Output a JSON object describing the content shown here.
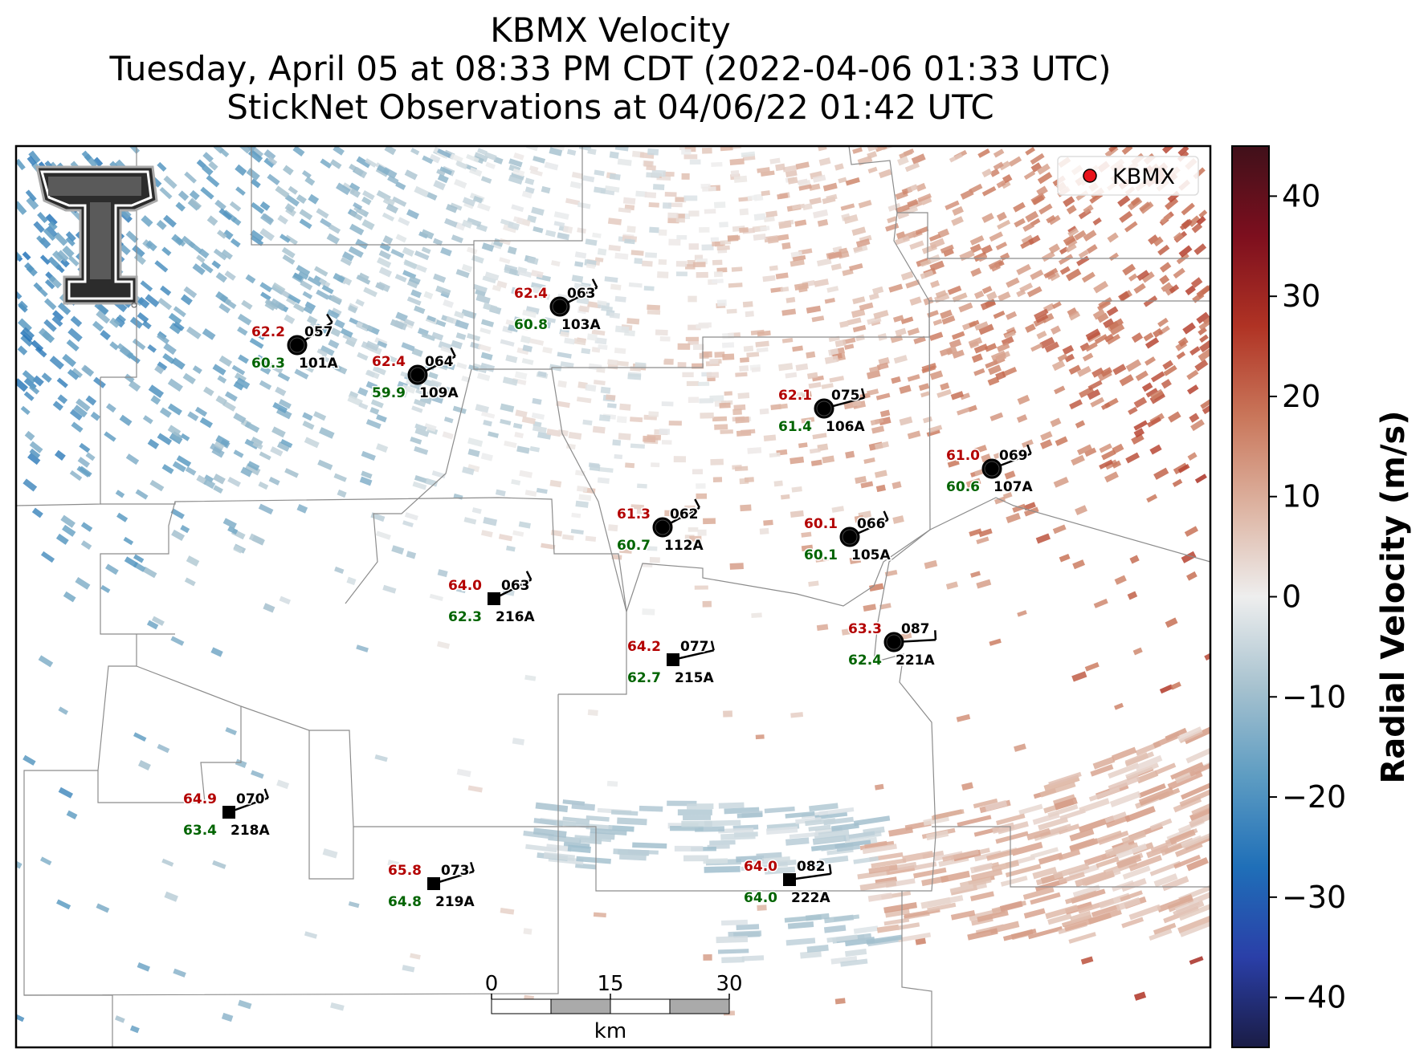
{
  "title": {
    "line1": "KBMX Velocity",
    "line2": "Tuesday, April 05 at 08:33 PM CDT (2022-04-06 01:33 UTC)",
    "line3": "StickNet Observations at 04/06/22 01:42 UTC"
  },
  "legend": {
    "label": "KBMX",
    "marker_color": "#e8141c"
  },
  "colorbar": {
    "label": "Radial Velocity (m/s)",
    "range": [
      -45,
      45
    ],
    "ticks": [
      {
        "v": 40,
        "label": "40"
      },
      {
        "v": 30,
        "label": "30"
      },
      {
        "v": 20,
        "label": "20"
      },
      {
        "v": 10,
        "label": "10"
      },
      {
        "v": 0,
        "label": "0"
      },
      {
        "v": -10,
        "label": "−10"
      },
      {
        "v": -20,
        "label": "−20"
      },
      {
        "v": -30,
        "label": "−30"
      },
      {
        "v": -40,
        "label": "−40"
      }
    ],
    "colors": [
      "#1a1c45",
      "#2a3fa8",
      "#1f6fb8",
      "#5d9cc2",
      "#a7c2cf",
      "#eeeeee",
      "#ddb3a1",
      "#c9765a",
      "#b03324",
      "#7d0f1e",
      "#40101a"
    ]
  },
  "scale_bar": {
    "labels": [
      "0",
      "15",
      "30"
    ],
    "unit": "km"
  },
  "colors": {
    "temperature": "#b30000",
    "dewpoint": "#006400",
    "station": "#000000"
  },
  "stations": [
    {
      "id": "101A",
      "temp": "62.2",
      "dew": "60.3",
      "dir": "057",
      "marker": "circle"
    },
    {
      "id": "109A",
      "temp": "62.4",
      "dew": "59.9",
      "dir": "064",
      "marker": "circle"
    },
    {
      "id": "103A",
      "temp": "62.4",
      "dew": "60.8",
      "dir": "063",
      "marker": "circle"
    },
    {
      "id": "106A",
      "temp": "62.1",
      "dew": "61.4",
      "dir": "075",
      "marker": "circle"
    },
    {
      "id": "107A",
      "temp": "61.0",
      "dew": "60.6",
      "dir": "069",
      "marker": "circle"
    },
    {
      "id": "112A",
      "temp": "61.3",
      "dew": "60.7",
      "dir": "062",
      "marker": "circle"
    },
    {
      "id": "105A",
      "temp": "60.1",
      "dew": "60.1",
      "dir": "066",
      "marker": "circle"
    },
    {
      "id": "216A",
      "temp": "64.0",
      "dew": "62.3",
      "dir": "063",
      "marker": "square"
    },
    {
      "id": "221A",
      "temp": "63.3",
      "dew": "62.4",
      "dir": "087",
      "marker": "circle"
    },
    {
      "id": "215A",
      "temp": "64.2",
      "dew": "62.7",
      "dir": "077",
      "marker": "square"
    },
    {
      "id": "218A",
      "temp": "64.9",
      "dew": "63.4",
      "dir": "070",
      "marker": "square"
    },
    {
      "id": "219A",
      "temp": "65.8",
      "dew": "64.8",
      "dir": "073",
      "marker": "square"
    },
    {
      "id": "222A",
      "temp": "64.0",
      "dew": "64.0",
      "dir": "082",
      "marker": "square"
    }
  ]
}
